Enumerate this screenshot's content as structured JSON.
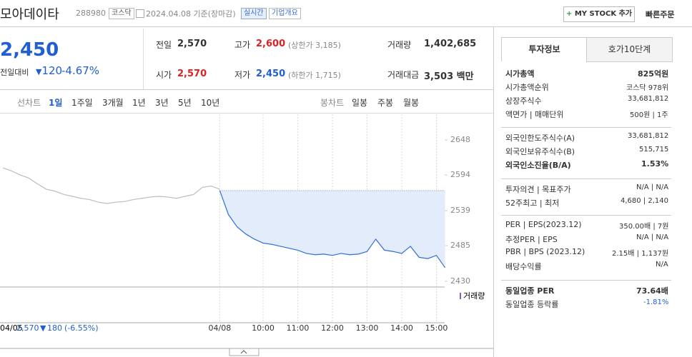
{
  "header": {
    "name": "모아데이타",
    "code": "288980",
    "market": "코스닥",
    "date": "2024.04.08 기준(장마감)",
    "realtime": "실시간",
    "overview": "기업개요",
    "mystock": "MY STOCK 추가",
    "quick": "빠른주문"
  },
  "price": {
    "current": "2,450",
    "change_label": "전일대비",
    "change": "120",
    "pct": "-4.67%"
  },
  "stats": [
    [
      "전일",
      "2,570",
      ""
    ],
    [
      "고가",
      "2,600",
      "(상한가 3,185)"
    ],
    [
      "거래량",
      "1,402,685",
      ""
    ],
    [
      "시가",
      "2,570",
      ""
    ],
    [
      "저가",
      "2,450",
      "(하한가 1,715)"
    ],
    [
      "거래대금",
      "3,503 백만",
      ""
    ]
  ],
  "tabs": {
    "line": "선차트",
    "periods": [
      "1일",
      "1주일",
      "3개월",
      "1년",
      "3년",
      "5년",
      "10년"
    ],
    "candle": "봉차트",
    "candles": [
      "일봉",
      "주봉",
      "월봉"
    ]
  },
  "chart_data": {
    "type": "line",
    "categories": [
      null,
      null,
      null,
      null,
      null,
      null,
      null,
      null,
      null,
      null,
      null,
      null,
      null,
      null,
      null,
      null,
      null,
      null,
      null,
      null,
      null,
      null,
      null,
      null,
      null,
      "04/08",
      null,
      null,
      null,
      null,
      "10:00",
      null,
      null,
      null,
      "11:00",
      null,
      null,
      null,
      "12:00",
      null,
      null,
      null,
      "13:00",
      null,
      null,
      null,
      "14:00",
      null,
      null,
      null,
      "15:00",
      null
    ],
    "series": [
      {
        "color": "#bdbdbd",
        "values": [
          2605,
          2600,
          2594,
          2589,
          2580,
          2572,
          2569,
          2564,
          2561,
          2558,
          2556,
          2552,
          2550,
          2552,
          2553,
          2556,
          2558,
          2560,
          2561,
          2560,
          2558,
          2561,
          2564,
          2575,
          2577,
          2572,
          null,
          null,
          null,
          null,
          null,
          null,
          null,
          null,
          null,
          null,
          null,
          null,
          null,
          null,
          null,
          null,
          null,
          null,
          null,
          null,
          null,
          null,
          null,
          null,
          null,
          null
        ]
      },
      {
        "color": "#2f6ed6",
        "values": [
          null,
          null,
          null,
          null,
          null,
          null,
          null,
          null,
          null,
          null,
          null,
          null,
          null,
          null,
          null,
          null,
          null,
          null,
          null,
          null,
          null,
          null,
          null,
          null,
          null,
          2570,
          2533,
          2514,
          2503,
          2495,
          2489,
          2487,
          2484,
          2481,
          2478,
          2473,
          2471,
          2472,
          2470,
          2473,
          2471,
          2472,
          2476,
          2495,
          2478,
          2476,
          2473,
          2484,
          2467,
          2465,
          2470,
          2451
        ]
      }
    ],
    "reference": 2570,
    "ylim": [
      2430,
      2648
    ],
    "yticks": [
      2648,
      2594,
      2539,
      2485,
      2430
    ],
    "volume_label": "거래량",
    "prev": {
      "date": "04/05",
      "price": "2,570",
      "change": "180",
      "pct": "(-6.55%)"
    }
  },
  "side": {
    "tabs": [
      "투자정보",
      "호가10단계"
    ],
    "groups": [
      [
        [
          "시가총액",
          "825억원"
        ],
        [
          "시가총액순위",
          "코스닥 978위"
        ],
        [
          "상장주식수",
          "33,681,812"
        ],
        [
          "액면가 | 매매단위",
          "500원 | 1주"
        ]
      ],
      [
        [
          "외국인한도주식수(A)",
          "33,681,812"
        ],
        [
          "외국인보유주식수(B)",
          "515,715"
        ],
        [
          "외국인소진율(B/A)",
          "1.53%"
        ]
      ],
      [
        [
          "투자의견 | 목표주가",
          "N/A | N/A"
        ],
        [
          "52주최고 | 최저",
          "4,680 | 2,140"
        ]
      ],
      [
        [
          "PER | EPS(2023.12)",
          "350.00배 | 7원"
        ],
        [
          "추정PER | EPS",
          "N/A | N/A"
        ],
        [
          "PBR | BPS (2023.12)",
          "2.15배 | 1,137원"
        ],
        [
          "배당수익률",
          "N/A"
        ]
      ],
      [
        [
          "동일업종 PER",
          "73.64배"
        ],
        [
          "동일업종 등락률",
          "-1.81%"
        ]
      ]
    ]
  }
}
